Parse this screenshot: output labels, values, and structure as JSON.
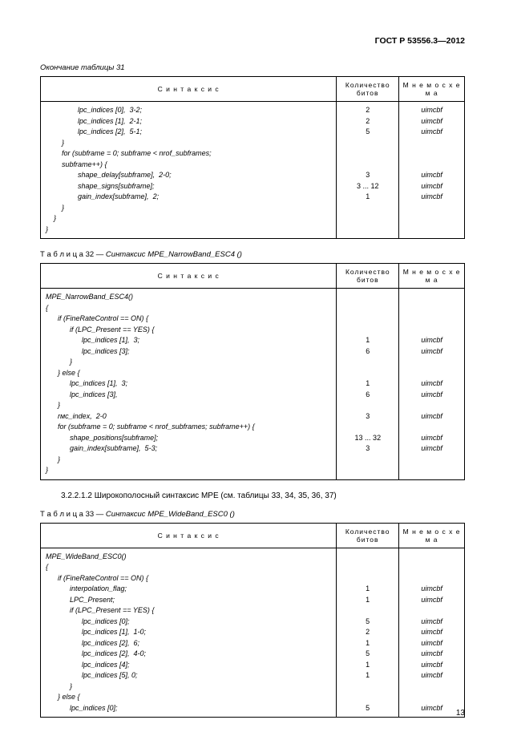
{
  "header": "ГОСТ Р 53556.3—2012",
  "page_number": "13",
  "table31": {
    "caption_prefix": "Окончание таблицы 31",
    "headers": {
      "syntax": "С и н т а к с и с",
      "bits": "Количество битов",
      "mnemo": "М н е м о с х е м а"
    },
    "rows": [
      {
        "text": "                lpc_indices [0],  3-2;",
        "bits": "2",
        "mnemo": "uimcbf"
      },
      {
        "text": "                lpc_indices [1],  2-1;",
        "bits": "2",
        "mnemo": "uimcbf"
      },
      {
        "text": "                lpc_indices [2],  5-1;",
        "bits": "5",
        "mnemo": "uimcbf"
      },
      {
        "text": "        }",
        "bits": "",
        "mnemo": ""
      },
      {
        "text": "        for (subframe = 0; subframe < nrof_subframes;",
        "bits": "",
        "mnemo": ""
      },
      {
        "text": "        subframe++) {",
        "bits": "",
        "mnemo": ""
      },
      {
        "text": "                shape_delay[subframe],  2-0;",
        "bits": "3",
        "mnemo": "uimcbf"
      },
      {
        "text": "                shape_signs[subframe];",
        "bits": "3 ... 12",
        "mnemo": "uimcbf"
      },
      {
        "text": "                gain_index[subframe],  2;",
        "bits": "1",
        "mnemo": "uimcbf"
      },
      {
        "text": "        }",
        "bits": "",
        "mnemo": ""
      },
      {
        "text": "    }",
        "bits": "",
        "mnemo": ""
      },
      {
        "text": "}",
        "bits": "",
        "mnemo": ""
      }
    ]
  },
  "table32": {
    "caption_label": "Т а б л и ц а  32",
    "caption_rest": " — Синтаксис MPE_NarrowBand_ESC4 ()",
    "headers": {
      "syntax": "С и н т а к с и с",
      "bits": "Количество битов",
      "mnemo": "М н е м о с х е м а"
    },
    "rows": [
      {
        "text": "MPE_NarrowBand_ESC4()",
        "bits": "",
        "mnemo": ""
      },
      {
        "text": "{",
        "bits": "",
        "mnemo": ""
      },
      {
        "text": "      if (FineRateControl == ON) {",
        "bits": "",
        "mnemo": ""
      },
      {
        "text": "            if (LPC_Present == YES) {",
        "bits": "",
        "mnemo": ""
      },
      {
        "text": "                  lpc_indices [1],  3;",
        "bits": "1",
        "mnemo": "uimcbf"
      },
      {
        "text": "                  lpc_indices [3];",
        "bits": "6",
        "mnemo": "uimcbf"
      },
      {
        "text": "            }",
        "bits": "",
        "mnemo": ""
      },
      {
        "text": "      } else {",
        "bits": "",
        "mnemo": ""
      },
      {
        "text": "            lpc_indices [1],  3;",
        "bits": "1",
        "mnemo": "uimcbf"
      },
      {
        "text": "            lpc_indices [3],",
        "bits": "6",
        "mnemo": "uimcbf"
      },
      {
        "text": "      }",
        "bits": "",
        "mnemo": ""
      },
      {
        "text": "      rмc_index,  2-0",
        "bits": "3",
        "mnemo": "uimcbf"
      },
      {
        "text": "      for (subframe = 0; subframe < nrof_subframes; subframe++) {",
        "bits": "",
        "mnemo": ""
      },
      {
        "text": "            shape_positions[subframe];",
        "bits": "13 ... 32",
        "mnemo": "uimcbf"
      },
      {
        "text": "            gain_index[subframe],  5-3;",
        "bits": "3",
        "mnemo": "uimcbf"
      },
      {
        "text": "      }",
        "bits": "",
        "mnemo": ""
      },
      {
        "text": "}",
        "bits": "",
        "mnemo": ""
      }
    ]
  },
  "midtext": "3.2.2.1.2 Широкополосный синтаксис MPE (см. таблицы 33, 34, 35, 36, 37)",
  "table33": {
    "caption_label": "Т а б л и ц а  33",
    "caption_rest": " — Синтаксис MPE_WideBand_ESC0 ()",
    "headers": {
      "syntax": "С и н т а к с и с",
      "bits": "Количество битов",
      "mnemo": "М н е м о с х е м а"
    },
    "rows": [
      {
        "text": "MPE_WideBand_ESC0()",
        "bits": "",
        "mnemo": ""
      },
      {
        "text": "{",
        "bits": "",
        "mnemo": ""
      },
      {
        "text": "      if (FineRateControl == ON) {",
        "bits": "",
        "mnemo": ""
      },
      {
        "text": "            interpolation_flag;",
        "bits": "1",
        "mnemo": "uimcbf"
      },
      {
        "text": "            LPC_Present;",
        "bits": "1",
        "mnemo": "uimcbf"
      },
      {
        "text": "            if (LPC_Present == YES) {",
        "bits": "",
        "mnemo": ""
      },
      {
        "text": "                  lpc_indices [0];",
        "bits": "5",
        "mnemo": "uimcbf"
      },
      {
        "text": "                  lpc_indices [1],  1-0;",
        "bits": "2",
        "mnemo": "uimcbf"
      },
      {
        "text": "                  lpc_indices [2],  6;",
        "bits": "1",
        "mnemo": "uimcbf"
      },
      {
        "text": "                  lpc_indices [2],  4-0;",
        "bits": "5",
        "mnemo": "uimcbf"
      },
      {
        "text": "                  lpc_indices [4];",
        "bits": "1",
        "mnemo": "uimcbf"
      },
      {
        "text": "                  lpc_indices [5], 0;",
        "bits": "1",
        "mnemo": "uimcbf"
      },
      {
        "text": "            }",
        "bits": "",
        "mnemo": ""
      },
      {
        "text": "      } else {",
        "bits": "",
        "mnemo": ""
      },
      {
        "text": "            lpc_indices [0];",
        "bits": "5",
        "mnemo": "uimcbf"
      }
    ]
  }
}
